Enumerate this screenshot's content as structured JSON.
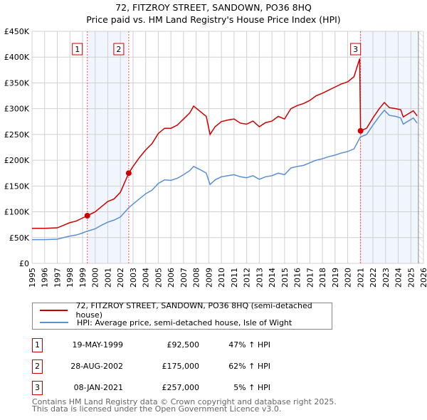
{
  "chart_data": {
    "type": "line",
    "title": "72, FITZROY STREET, SANDOWN, PO36 8HQ",
    "subtitle": "Price paid vs. HM Land Registry's House Price Index (HPI)",
    "xlim": [
      1995,
      2026
    ],
    "ylim": [
      0,
      450000
    ],
    "grid": true,
    "x_ticks": [
      "1995",
      "1996",
      "1997",
      "1998",
      "1999",
      "2000",
      "2001",
      "2002",
      "2003",
      "2004",
      "2005",
      "2006",
      "2007",
      "2008",
      "2009",
      "2010",
      "2011",
      "2012",
      "2013",
      "2014",
      "2015",
      "2016",
      "2017",
      "2018",
      "2019",
      "2020",
      "2021",
      "2022",
      "2023",
      "2024",
      "2025",
      "2026"
    ],
    "y_ticks": [
      {
        "v": 0,
        "label": "£0"
      },
      {
        "v": 50000,
        "label": "£50K"
      },
      {
        "v": 100000,
        "label": "£100K"
      },
      {
        "v": 150000,
        "label": "£150K"
      },
      {
        "v": 200000,
        "label": "£200K"
      },
      {
        "v": 250000,
        "label": "£250K"
      },
      {
        "v": 300000,
        "label": "£300K"
      },
      {
        "v": 350000,
        "label": "£350K"
      },
      {
        "v": 400000,
        "label": "£400K"
      },
      {
        "v": 450000,
        "label": "£450K"
      }
    ],
    "shaded_ranges": [
      [
        1999.38,
        2002.66
      ],
      [
        2021.02,
        2025.6
      ]
    ],
    "hatched_from": 2025.6,
    "series": [
      {
        "name": "72, FITZROY STREET, SANDOWN, PO36 8HQ (semi-detached house)",
        "color": "#cc0000",
        "points": [
          [
            1995,
            68
          ],
          [
            1996,
            68
          ],
          [
            1997,
            69
          ],
          [
            1997.5,
            74
          ],
          [
            1998,
            79
          ],
          [
            1998.5,
            82
          ],
          [
            1999,
            88
          ],
          [
            1999.38,
            92.5
          ],
          [
            2000,
            100
          ],
          [
            2000.5,
            110
          ],
          [
            2001,
            120
          ],
          [
            2001.5,
            125
          ],
          [
            2002,
            138
          ],
          [
            2002.66,
            175
          ],
          [
            2003,
            188
          ],
          [
            2003.5,
            205
          ],
          [
            2004,
            220
          ],
          [
            2004.5,
            232
          ],
          [
            2005,
            252
          ],
          [
            2005.5,
            262
          ],
          [
            2006,
            262
          ],
          [
            2006.5,
            268
          ],
          [
            2007,
            280
          ],
          [
            2007.5,
            292
          ],
          [
            2007.8,
            305
          ],
          [
            2008.3,
            295
          ],
          [
            2008.8,
            285
          ],
          [
            2009.1,
            250
          ],
          [
            2009.5,
            265
          ],
          [
            2010,
            275
          ],
          [
            2010.5,
            278
          ],
          [
            2011,
            280
          ],
          [
            2011.5,
            272
          ],
          [
            2012,
            270
          ],
          [
            2012.5,
            276
          ],
          [
            2013,
            265
          ],
          [
            2013.5,
            273
          ],
          [
            2014,
            276
          ],
          [
            2014.5,
            285
          ],
          [
            2015,
            280
          ],
          [
            2015.5,
            300
          ],
          [
            2016,
            306
          ],
          [
            2016.5,
            310
          ],
          [
            2017,
            316
          ],
          [
            2017.5,
            325
          ],
          [
            2018,
            330
          ],
          [
            2018.5,
            336
          ],
          [
            2019,
            342
          ],
          [
            2019.5,
            348
          ],
          [
            2020,
            352
          ],
          [
            2020.5,
            362
          ],
          [
            2020.95,
            397
          ],
          [
            2021.02,
            257
          ],
          [
            2021.5,
            262
          ],
          [
            2022,
            282
          ],
          [
            2022.5,
            300
          ],
          [
            2022.9,
            312
          ],
          [
            2023.3,
            302
          ],
          [
            2023.8,
            300
          ],
          [
            2024.2,
            298
          ],
          [
            2024.4,
            284
          ],
          [
            2024.8,
            290
          ],
          [
            2025.2,
            296
          ],
          [
            2025.5,
            286
          ]
        ]
      },
      {
        "name": "HPI: Average price, semi-detached house, Isle of Wight",
        "color": "#5b8fd4",
        "points": [
          [
            1995,
            46
          ],
          [
            1996,
            46
          ],
          [
            1997,
            47
          ],
          [
            1997.5,
            50
          ],
          [
            1998,
            53
          ],
          [
            1998.5,
            55
          ],
          [
            1999,
            59
          ],
          [
            1999.38,
            62.5
          ],
          [
            2000,
            67
          ],
          [
            2000.5,
            74
          ],
          [
            2001,
            80
          ],
          [
            2001.5,
            84
          ],
          [
            2002,
            90
          ],
          [
            2002.66,
            108
          ],
          [
            2003,
            115
          ],
          [
            2003.5,
            125
          ],
          [
            2004,
            135
          ],
          [
            2004.5,
            142
          ],
          [
            2005,
            155
          ],
          [
            2005.5,
            162
          ],
          [
            2006,
            161
          ],
          [
            2006.5,
            165
          ],
          [
            2007,
            172
          ],
          [
            2007.5,
            180
          ],
          [
            2007.8,
            188
          ],
          [
            2008.3,
            182
          ],
          [
            2008.8,
            175
          ],
          [
            2009.1,
            153
          ],
          [
            2009.5,
            162
          ],
          [
            2010,
            168
          ],
          [
            2010.5,
            170
          ],
          [
            2011,
            172
          ],
          [
            2011.5,
            168
          ],
          [
            2012,
            166
          ],
          [
            2012.5,
            170
          ],
          [
            2013,
            163
          ],
          [
            2013.5,
            168
          ],
          [
            2014,
            170
          ],
          [
            2014.5,
            175
          ],
          [
            2015,
            172
          ],
          [
            2015.5,
            185
          ],
          [
            2016,
            188
          ],
          [
            2016.5,
            190
          ],
          [
            2017,
            195
          ],
          [
            2017.5,
            200
          ],
          [
            2018,
            203
          ],
          [
            2018.5,
            207
          ],
          [
            2019,
            210
          ],
          [
            2019.5,
            214
          ],
          [
            2020,
            217
          ],
          [
            2020.5,
            222
          ],
          [
            2021,
            245
          ],
          [
            2021.5,
            250
          ],
          [
            2022,
            268
          ],
          [
            2022.5,
            285
          ],
          [
            2022.9,
            297
          ],
          [
            2023.3,
            287
          ],
          [
            2023.8,
            285
          ],
          [
            2024.2,
            282
          ],
          [
            2024.4,
            270
          ],
          [
            2024.8,
            276
          ],
          [
            2025.2,
            282
          ],
          [
            2025.5,
            272
          ]
        ]
      }
    ],
    "point_units": "thousand GBP",
    "sales": [
      {
        "n": "1",
        "x": 1999.38,
        "y": 92.5
      },
      {
        "n": "2",
        "x": 2002.66,
        "y": 175
      },
      {
        "n": "3",
        "x": 2021.02,
        "y": 257
      }
    ],
    "legend": "below"
  },
  "transactions": [
    {
      "n": "1",
      "date": "19-MAY-1999",
      "price": "£92,500",
      "hpi": "47% ↑ HPI"
    },
    {
      "n": "2",
      "date": "28-AUG-2002",
      "price": "£175,000",
      "hpi": "62% ↑ HPI"
    },
    {
      "n": "3",
      "date": "08-JAN-2021",
      "price": "£257,000",
      "hpi": "5% ↑ HPI"
    }
  ],
  "footer": {
    "line1": "Contains HM Land Registry data © Crown copyright and database right 2025.",
    "line2": "This data is licensed under the Open Government Licence v3.0."
  }
}
